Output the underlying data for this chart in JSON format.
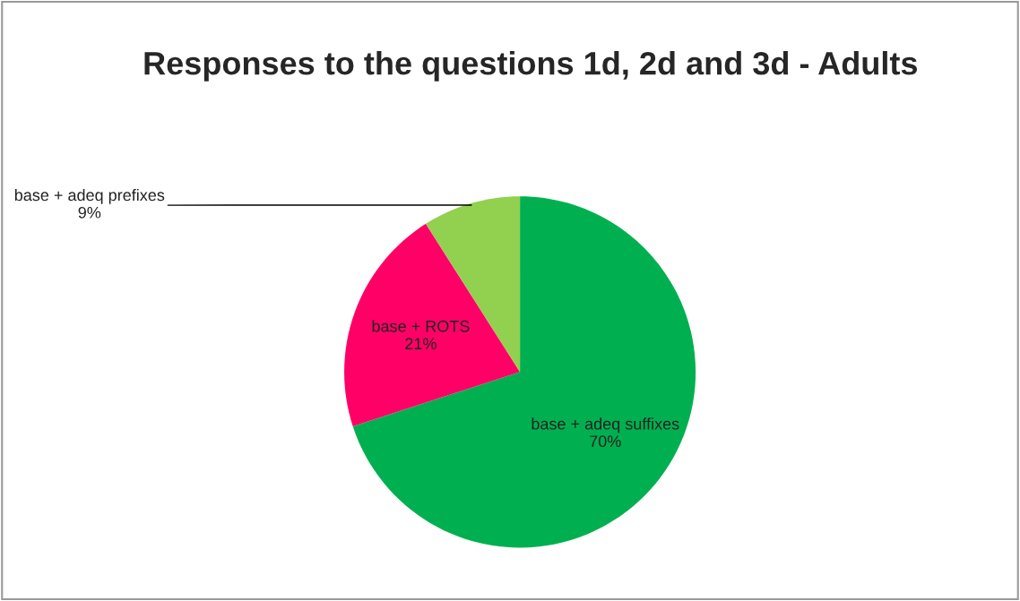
{
  "chart_data": {
    "type": "pie",
    "title": "Responses to the questions 1d, 2d and 3d - Adults",
    "categories": [
      "base + adeq suffixes",
      "base + ROTS",
      "base + adeq prefixes"
    ],
    "values": [
      70,
      21,
      9
    ],
    "colors": [
      "#00b050",
      "#ff0066",
      "#92d050"
    ],
    "value_labels": [
      "70%",
      "21%",
      "9%"
    ],
    "legend": false
  }
}
